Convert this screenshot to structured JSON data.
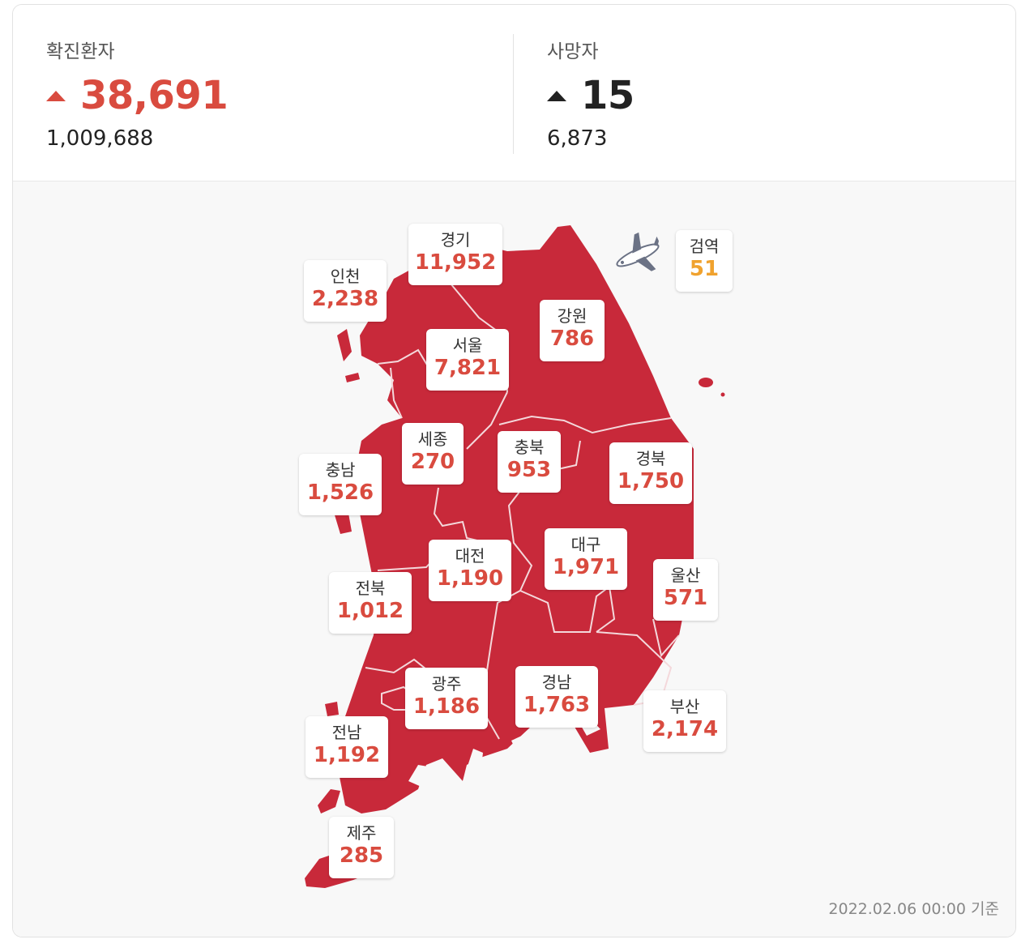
{
  "stats": {
    "confirmed": {
      "label": "확진환자",
      "increase": "38,691",
      "total": "1,009,688",
      "trend_icon": "up-triangle-icon",
      "color": "#d94b3f"
    },
    "deaths": {
      "label": "사망자",
      "increase": "15",
      "total": "6,873",
      "trend_icon": "up-triangle-icon",
      "color": "#222222"
    }
  },
  "map": {
    "fill_color": "#c8293a",
    "regions": {
      "gyeonggi": {
        "name": "경기",
        "value": "11,952"
      },
      "incheon": {
        "name": "인천",
        "value": "2,238"
      },
      "seoul": {
        "name": "서울",
        "value": "7,821"
      },
      "gangwon": {
        "name": "강원",
        "value": "786"
      },
      "quarantine": {
        "name": "검역",
        "value": "51"
      },
      "sejong": {
        "name": "세종",
        "value": "270"
      },
      "chungbuk": {
        "name": "충북",
        "value": "953"
      },
      "chungnam": {
        "name": "충남",
        "value": "1,526"
      },
      "gyeongbuk": {
        "name": "경북",
        "value": "1,750"
      },
      "daejeon": {
        "name": "대전",
        "value": "1,190"
      },
      "daegu": {
        "name": "대구",
        "value": "1,971"
      },
      "jeonbuk": {
        "name": "전북",
        "value": "1,012"
      },
      "ulsan": {
        "name": "울산",
        "value": "571"
      },
      "gwangju": {
        "name": "광주",
        "value": "1,186"
      },
      "gyeongnam": {
        "name": "경남",
        "value": "1,763"
      },
      "busan": {
        "name": "부산",
        "value": "2,174"
      },
      "jeonnam": {
        "name": "전남",
        "value": "1,192"
      },
      "jeju": {
        "name": "제주",
        "value": "285"
      }
    }
  },
  "footer": {
    "as_of": "2022.02.06 00:00 기준"
  }
}
